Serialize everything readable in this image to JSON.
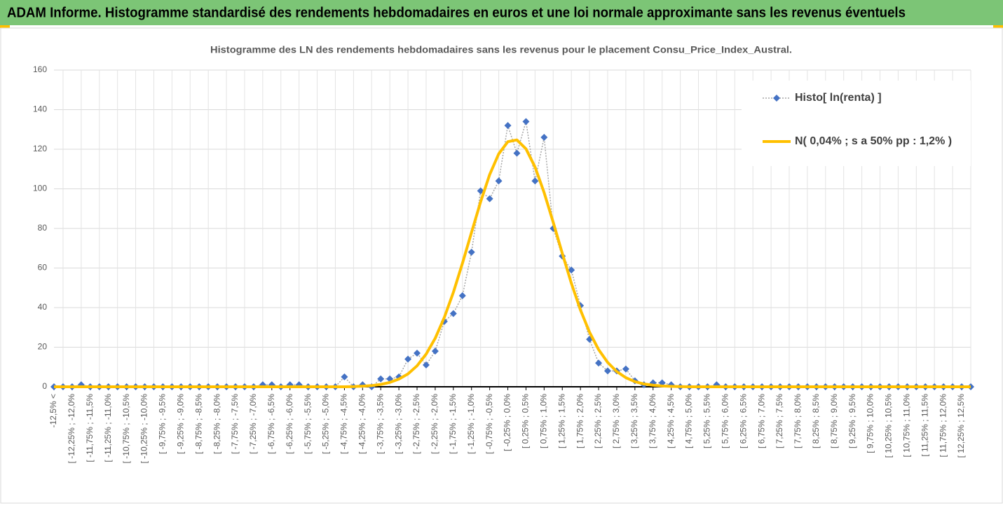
{
  "header": {
    "title": "ADAM Informe. Histogramme standardisé des rendements hebdomadaires en euros et une loi normale approximante sans les revenus éventuels"
  },
  "chart_data": {
    "type": "line",
    "title": "Histogramme des LN des rendements hebdomadaires sans les revenus pour le placement Consu_Price_Index_Austral.",
    "categories": [
      "-12,5% <",
      null,
      "[ -12,25% ; -12,0%",
      null,
      "[ -11,75% ; -11,5%",
      null,
      "[ -11,25% ; -11,0%",
      null,
      "[ -10,75% ; -10,5%",
      null,
      "[ -10,25% ; -10,0%",
      null,
      "[ -9,75% ; -9,5%",
      null,
      "[ -9,25% ; -9,0%",
      null,
      "[ -8,75% ; -8,5%",
      null,
      "[ -8,25% ; -8,0%",
      null,
      "[ -7,75% ; -7,5%",
      null,
      "[ -7,25% ; -7,0%",
      null,
      "[ -6,75% ; -6,5%",
      null,
      "[ -6,25% ; -6,0%",
      null,
      "[ -5,75% ; -5,5%",
      null,
      "[ -5,25% ; -5,0%",
      null,
      "[ -4,75% ; -4,5%",
      null,
      "[ -4,25% ; -4,0%",
      null,
      "[ -3,75% ; -3,5%",
      null,
      "[ -3,25% ; -3,0%",
      null,
      "[ -2,75% ; -2,5%",
      null,
      "[ -2,25% ; -2,0%",
      null,
      "[ -1,75% ; -1,5%",
      null,
      "[ -1,25% ; -1,0%",
      null,
      "[ -0,75% ; -0,5%",
      null,
      "[ -0,25% ; 0,0%",
      null,
      "[ 0,25% ; 0,5%",
      null,
      "[ 0,75% ; 1,0%",
      null,
      "[ 1,25% ; 1,5%",
      null,
      "[ 1,75% ; 2,0%",
      null,
      "[ 2,25% ; 2,5%",
      null,
      "[ 2,75% ; 3,0%",
      null,
      "[ 3,25% ; 3,5%",
      null,
      "[ 3,75% ; 4,0%",
      null,
      "[ 4,25% ; 4,5%",
      null,
      "[ 4,75% ; 5,0%",
      null,
      "[ 5,25% ; 5,5%",
      null,
      "[ 5,75% ; 6,0%",
      null,
      "[ 6,25% ; 6,5%",
      null,
      "[ 6,75% ; 7,0%",
      null,
      "[ 7,25% ; 7,5%",
      null,
      "[ 7,75% ; 8,0%",
      null,
      "[ 8,25% ; 8,5%",
      null,
      "[ 8,75% ; 9,0%",
      null,
      "[ 9,25% ; 9,5%",
      null,
      "[ 9,75% ; 10,0%",
      null,
      "[ 10,25% ; 10,5%",
      null,
      "[ 10,75% ; 11,0%",
      null,
      "[ 11,25% ; 11,5%",
      null,
      "[ 11,75% ; 12,0%",
      null,
      "[ 12,25% ; 12,5%",
      null
    ],
    "series": [
      {
        "name": "Histo[ ln(renta) ]",
        "color": "#4472c4",
        "line_color": "#a6a6a6",
        "line_style": "dotted",
        "marker": "diamond",
        "values": [
          0,
          0,
          0,
          1,
          0,
          0,
          0,
          0,
          0,
          0,
          0,
          0,
          0,
          0,
          0,
          0,
          0,
          0,
          0,
          0,
          0,
          0,
          0,
          1,
          1,
          0,
          1,
          1,
          0,
          0,
          0,
          0,
          5,
          0,
          1,
          0,
          4,
          4,
          5,
          14,
          17,
          11,
          18,
          33,
          37,
          46,
          68,
          99,
          95,
          104,
          132,
          118,
          134,
          104,
          126,
          80,
          66,
          59,
          41,
          24,
          12,
          8,
          8,
          9,
          3,
          1,
          2,
          2,
          1,
          0,
          0,
          0,
          0,
          1,
          0,
          0,
          0,
          0,
          0,
          0,
          0,
          0,
          0,
          0,
          0,
          0,
          0,
          0,
          0,
          0,
          0,
          0,
          0,
          0,
          0,
          0,
          0,
          0,
          0,
          0,
          0,
          0
        ]
      },
      {
        "name": "N( 0,04% ; s a 50% pp : 1,2% )",
        "color": "#ffc000",
        "line_style": "solid",
        "marker": "none",
        "values": [
          0,
          0,
          0,
          0,
          0,
          0,
          0,
          0,
          0,
          0,
          0,
          0,
          0,
          0,
          0,
          0,
          0,
          0,
          0,
          0,
          0,
          0,
          0,
          0,
          0,
          0,
          0,
          0,
          0,
          0,
          0,
          0,
          0,
          0.1,
          0.3,
          0.6,
          1.2,
          2.2,
          3.9,
          6.5,
          10.6,
          16.5,
          24.5,
          35.0,
          47.7,
          62.4,
          78.0,
          93.4,
          107.2,
          117.7,
          123.8,
          124.7,
          120.2,
          111.0,
          98.1,
          83.1,
          67.4,
          52.3,
          38.8,
          27.6,
          18.8,
          12.3,
          7.7,
          4.6,
          2.6,
          1.4,
          0.8,
          0.4,
          0.2,
          0.1,
          0,
          0,
          0,
          0,
          0,
          0,
          0,
          0,
          0,
          0,
          0,
          0,
          0,
          0,
          0,
          0,
          0,
          0,
          0,
          0,
          0,
          0,
          0,
          0,
          0,
          0,
          0,
          0,
          0,
          0,
          0,
          0
        ]
      }
    ],
    "ylim": [
      0,
      160
    ],
    "yticks": [
      0,
      20,
      40,
      60,
      80,
      100,
      120,
      140,
      160
    ],
    "grid": true,
    "legend": "upper right"
  }
}
